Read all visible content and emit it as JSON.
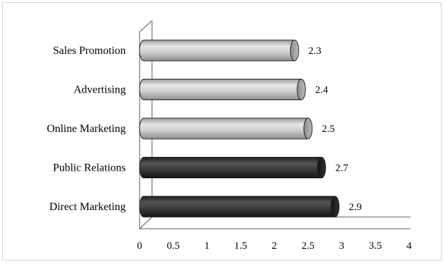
{
  "chart_data": {
    "type": "bar",
    "orientation": "horizontal",
    "style": "3d-cylinder",
    "categories": [
      "Sales Promotion",
      "Advertising",
      "Online Marketing",
      "Public Relations",
      "Direct Marketing"
    ],
    "values": [
      2.3,
      2.4,
      2.5,
      2.7,
      2.9
    ],
    "data_labels": [
      "2.3",
      "2.4",
      "2.5",
      "2.7",
      "2.9"
    ],
    "bar_colors": [
      "#c8c8c8",
      "#c8c8c8",
      "#c8c8c8",
      "#3a3a3a",
      "#3a3a3a"
    ],
    "x_ticks": [
      "0",
      "0.5",
      "1",
      "1.5",
      "2",
      "2.5",
      "3",
      "3.5",
      "4"
    ],
    "xlim": [
      0,
      4
    ],
    "title": "",
    "xlabel": "",
    "ylabel": "",
    "grid": false,
    "legend": "none"
  }
}
